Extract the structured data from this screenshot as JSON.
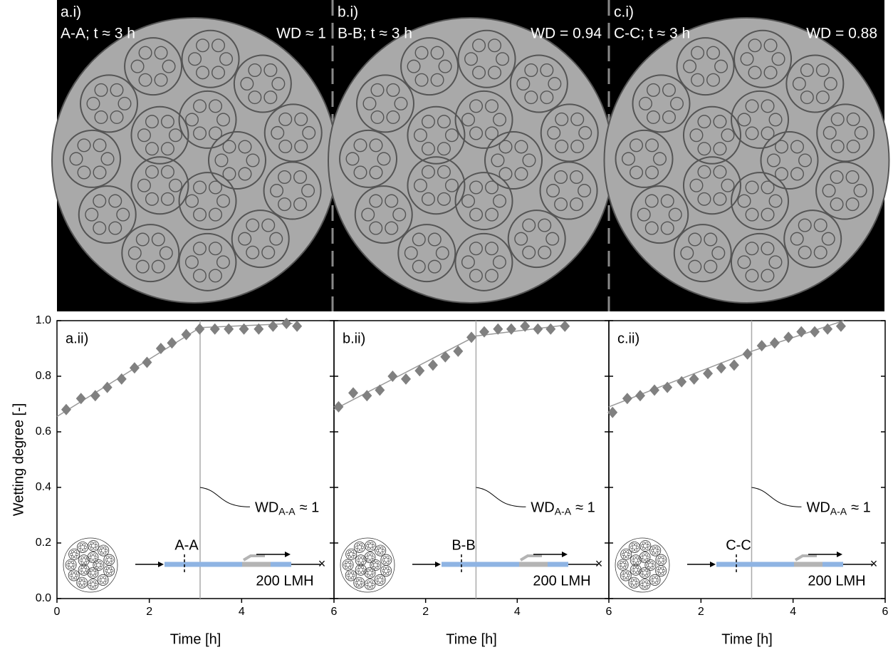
{
  "images": [
    {
      "label": "a.i)",
      "section": "A-A; t ≈ 3 h",
      "wd": "WD ≈ 1"
    },
    {
      "label": "b.i)",
      "section": "B-B; t ≈ 3 h",
      "wd": "WD = 0.94"
    },
    {
      "label": "c.i)",
      "section": "C-C; t ≈ 3 h",
      "wd": "WD = 0.88"
    }
  ],
  "chart_data": [
    {
      "type": "scatter",
      "title": "a.ii)",
      "ylabel": "Wetting degree [-]",
      "xlabel": "Time [h]",
      "color": "#808080",
      "x": [
        0.2,
        0.52,
        0.83,
        1.09,
        1.4,
        1.68,
        1.95,
        2.25,
        2.49,
        2.8,
        3.09,
        3.42,
        3.72,
        4.05,
        4.37,
        4.68,
        4.97,
        5.2
      ],
      "values": [
        0.68,
        0.72,
        0.73,
        0.76,
        0.79,
        0.83,
        0.85,
        0.9,
        0.92,
        0.95,
        0.97,
        0.97,
        0.97,
        0.97,
        0.97,
        0.98,
        0.99,
        0.98
      ],
      "fit": {
        "x": [
          0,
          3.1,
          5.1
        ],
        "values": [
          0.655,
          0.975,
          0.99
        ]
      },
      "vline": 3.1,
      "xlim": [
        0,
        6
      ],
      "ylim": [
        0,
        1
      ],
      "xticks": [
        0,
        2,
        4,
        6
      ],
      "yticks": [
        {
          "value": 0,
          "label": "0.0"
        },
        0.2,
        0.4,
        0.6,
        0.8,
        {
          "value": 1,
          "label": "1.0"
        }
      ],
      "ytick_labels": true,
      "annotation": {
        "text": "WD",
        "subscript": "A-A",
        "suffix": "≈ 1"
      },
      "schematic": {
        "section": "A-A",
        "flux": "200 LMH"
      }
    },
    {
      "type": "scatter",
      "title": "b.ii)",
      "xlabel": "Time [h]",
      "color": "#808080",
      "x": [
        0.1,
        0.42,
        0.72,
        1.0,
        1.28,
        1.57,
        1.87,
        2.16,
        2.43,
        2.71,
        3.0,
        3.28,
        3.58,
        3.87,
        4.17,
        4.45,
        4.73,
        5.04
      ],
      "values": [
        0.69,
        0.74,
        0.73,
        0.75,
        0.8,
        0.79,
        0.82,
        0.84,
        0.87,
        0.89,
        0.94,
        0.96,
        0.97,
        0.97,
        0.98,
        0.97,
        0.97,
        0.98
      ],
      "fit": {
        "x": [
          0,
          3.1,
          5.1
        ],
        "values": [
          0.68,
          0.945,
          0.985
        ]
      },
      "vline": 3.1,
      "xlim": [
        0,
        6
      ],
      "ylim": [
        0,
        1
      ],
      "xticks": [
        2,
        4,
        6
      ],
      "yticks": [
        0,
        0.2,
        0.4,
        0.6,
        0.8,
        1
      ],
      "ytick_labels": false,
      "annotation": {
        "text": "WD",
        "subscript": "A-A",
        "suffix": "≈ 1"
      },
      "schematic": {
        "section": "B-B",
        "flux": "200 LMH"
      }
    },
    {
      "type": "scatter",
      "title": "c.ii)",
      "xlabel": "Time [h]",
      "color": "#808080",
      "x": [
        0.08,
        0.4,
        0.68,
        0.99,
        1.27,
        1.58,
        1.85,
        2.15,
        2.44,
        2.72,
        3.01,
        3.32,
        3.6,
        3.9,
        4.18,
        4.47,
        4.75,
        5.04
      ],
      "values": [
        0.67,
        0.72,
        0.73,
        0.75,
        0.76,
        0.78,
        0.79,
        0.81,
        0.83,
        0.84,
        0.88,
        0.91,
        0.92,
        0.94,
        0.96,
        0.96,
        0.97,
        0.98
      ],
      "fit": {
        "x": [
          0,
          3.1,
          5.1
        ],
        "values": [
          0.69,
          0.89,
          1.0
        ]
      },
      "vline": 3.1,
      "xlim": [
        0,
        6
      ],
      "ylim": [
        0,
        1
      ],
      "xticks": [
        2,
        4,
        6
      ],
      "yticks": [
        0,
        0.2,
        0.4,
        0.6,
        0.8,
        1
      ],
      "ytick_labels": false,
      "annotation": {
        "text": "WD",
        "subscript": "A-A",
        "suffix": "≈ 1"
      },
      "schematic": {
        "section": "C-C",
        "flux": "200 LMH"
      }
    }
  ]
}
